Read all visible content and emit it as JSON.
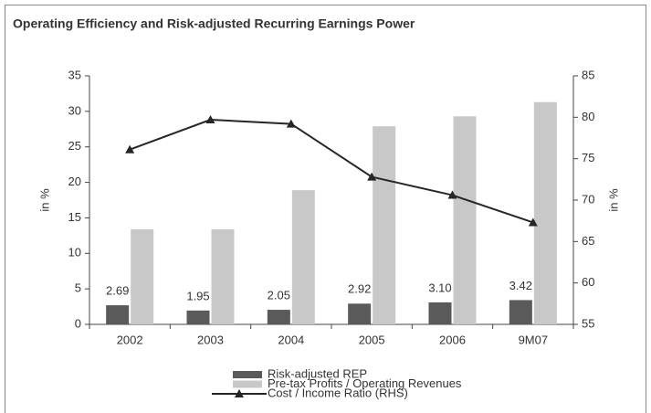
{
  "chart_data": {
    "type": "bar",
    "title": "Operating Efficiency and Risk-adjusted Recurring Earnings Power",
    "categories": [
      "2002",
      "2003",
      "2004",
      "2005",
      "2006",
      "9M07"
    ],
    "series": [
      {
        "name": "Risk-adjusted REP",
        "color": "#5a5a5a",
        "values": [
          2.69,
          1.95,
          2.05,
          2.92,
          3.1,
          3.42
        ],
        "value_labels": [
          "2.69",
          "1.95",
          "2.05",
          "2.92",
          "3.10",
          "3.42"
        ]
      },
      {
        "name": "Pre-tax Profits / Operating Revenues",
        "color": "#c8c8c8",
        "values": [
          13.4,
          13.4,
          18.9,
          27.9,
          29.3,
          31.3
        ]
      },
      {
        "name": "Cost / Income Ratio (RHS)",
        "color": "#262626",
        "type": "line",
        "axis": "y2",
        "values": [
          76.1,
          79.7,
          79.2,
          72.8,
          70.6,
          67.3
        ]
      }
    ],
    "ylabel": "in %",
    "y2label": "in %",
    "ylim": [
      0,
      35
    ],
    "yticks": [
      0,
      5,
      10,
      15,
      20,
      25,
      30,
      35
    ],
    "y2lim": [
      55,
      85
    ],
    "y2ticks": [
      55,
      60,
      65,
      70,
      75,
      80,
      85
    ]
  }
}
